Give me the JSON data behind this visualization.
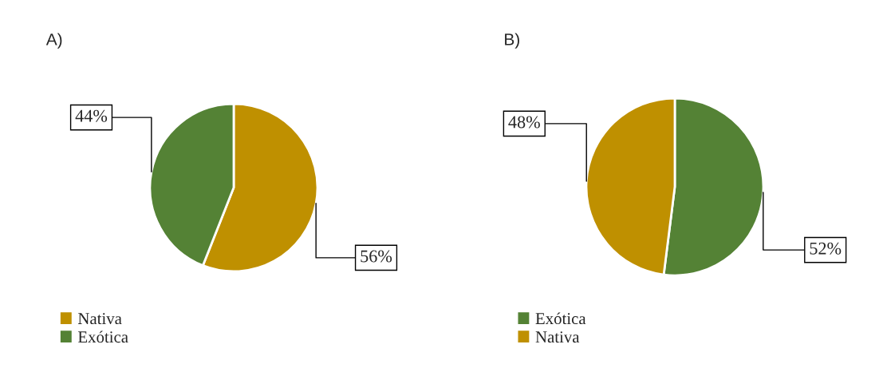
{
  "chart_data": [
    {
      "type": "pie",
      "title": "A)",
      "categories": [
        "Nativa",
        "Exótica"
      ],
      "values": [
        56,
        44
      ],
      "colors": [
        "#bf9000",
        "#548235"
      ],
      "value_labels": [
        "56%",
        "44%"
      ],
      "legend": "bottom left"
    },
    {
      "type": "pie",
      "title": "B)",
      "categories": [
        "Exótica",
        "Nativa"
      ],
      "values": [
        52,
        48
      ],
      "colors": [
        "#548235",
        "#bf9000"
      ],
      "value_labels": [
        "52%",
        "48%"
      ],
      "legend": "bottom left"
    }
  ]
}
